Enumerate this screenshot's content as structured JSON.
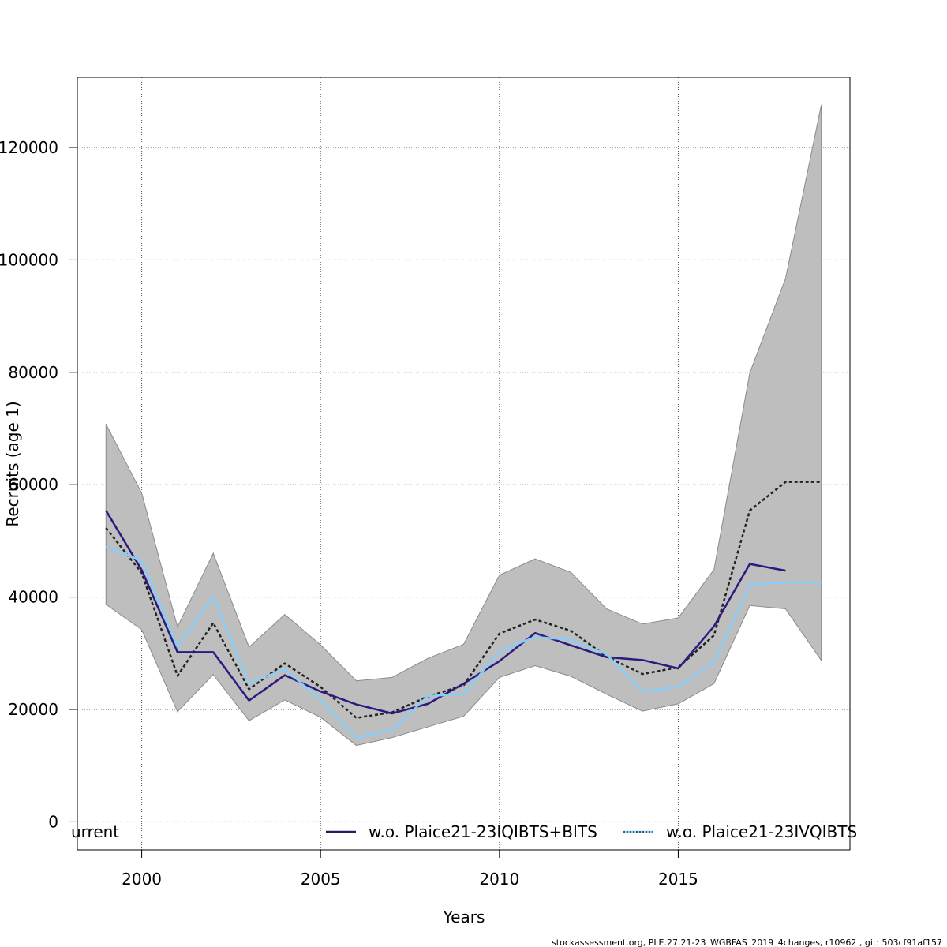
{
  "chart_data": {
    "type": "line",
    "title": "",
    "xlabel": "Years",
    "ylabel": "Recruits (age 1)",
    "xlim": [
      1998.2,
      2019.8
    ],
    "ylim": [
      -5000,
      132500
    ],
    "grid": true,
    "x_ticks": [
      2000,
      2005,
      2010,
      2015
    ],
    "x_tick_labels": [
      "2000",
      "2005",
      "2010",
      "2015"
    ],
    "y_ticks": [
      0,
      20000,
      40000,
      60000,
      80000,
      100000,
      120000
    ],
    "y_tick_labels": [
      "0",
      "20000",
      "40000",
      "60000",
      "80000",
      "100000",
      "120000"
    ],
    "x": [
      1999,
      2000,
      2001,
      2002,
      2003,
      2004,
      2005,
      2006,
      2007,
      2008,
      2009,
      2010,
      2011,
      2012,
      2013,
      2014,
      2015,
      2016,
      2017,
      2018,
      2019
    ],
    "confidence_band": {
      "color": "#bebebe",
      "lower": [
        38700,
        34200,
        19600,
        26200,
        18000,
        21700,
        18600,
        13600,
        15000,
        16900,
        18800,
        25700,
        27800,
        25900,
        22700,
        19700,
        21000,
        24600,
        38500,
        37900,
        28700
      ],
      "upper": [
        70800,
        58500,
        34700,
        47800,
        31100,
        36900,
        31500,
        25100,
        25700,
        29100,
        31600,
        43900,
        46800,
        44400,
        37900,
        35200,
        36300,
        44900,
        79900,
        96700,
        127600
      ]
    },
    "series": [
      {
        "color": "#222222",
        "dash": "4 3",
        "values": [
          52300,
          44300,
          26000,
          35400,
          23600,
          28200,
          24000,
          18500,
          19500,
          22300,
          24300,
          33500,
          36000,
          34000,
          29400,
          26300,
          27500,
          33200,
          55400,
          60500,
          60500
        ]
      },
      {
        "name": "w.o. Plaice21-23IQIBTS+BITS",
        "color": "#2b1a80",
        "dash": "",
        "values": [
          55400,
          44800,
          30200,
          30200,
          21600,
          26100,
          23200,
          20900,
          19300,
          21000,
          24600,
          28600,
          33600,
          31400,
          29300,
          28800,
          27300,
          34800,
          45900,
          44700,
          null
        ]
      },
      {
        "name": "w.o. Plaice21-23IVQIBTS",
        "color": "#87cefa",
        "dash": "",
        "values": [
          49000,
          46500,
          31200,
          40100,
          24600,
          27200,
          21700,
          15000,
          16300,
          22400,
          22700,
          30400,
          32900,
          32400,
          29800,
          23200,
          24000,
          28400,
          42300,
          42600,
          42600
        ]
      }
    ],
    "legend": {
      "placement": "bottom",
      "entries": [
        {
          "label": "current",
          "color": "#222222",
          "dash": "4 3",
          "shown": "urrent"
        },
        {
          "label": "w.o. Plaice21-23IQIBTS+BITS",
          "color": "#2b1a80",
          "dash": "4 3",
          "shown": "w.o. Plaice21-23IQIBTS+BITS"
        },
        {
          "label": "w.o. Plaice21-23IVQIBTS",
          "color": "#87cefa",
          "dash": "2 2",
          "shown": "w.o. Plaice21-23IVQIBTS"
        }
      ]
    }
  },
  "footer": "stockassessment.org, PLE.27.21-23_WGBFAS_2019_4changes, r10962 , git: 503cf91af157"
}
